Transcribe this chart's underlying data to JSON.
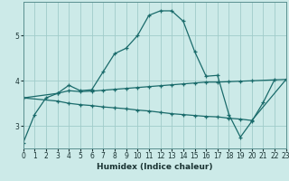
{
  "xlabel": "Humidex (Indice chaleur)",
  "bg_color": "#cceae8",
  "grid_color": "#a0ccca",
  "line_color": "#1a6b6b",
  "xlim": [
    0,
    23
  ],
  "ylim": [
    2.5,
    5.75
  ],
  "yticks": [
    3,
    4,
    5
  ],
  "xticks": [
    0,
    1,
    2,
    3,
    4,
    5,
    6,
    7,
    8,
    9,
    10,
    11,
    12,
    13,
    14,
    15,
    16,
    17,
    18,
    19,
    20,
    21,
    22,
    23
  ],
  "curve1_x": [
    0,
    1,
    2,
    3,
    4,
    5,
    6,
    7,
    8,
    9,
    10,
    11,
    12,
    13,
    14,
    15,
    16,
    17,
    18,
    19,
    20,
    21,
    22
  ],
  "curve1_y": [
    2.62,
    3.25,
    3.62,
    3.72,
    3.9,
    3.78,
    3.8,
    4.2,
    4.6,
    4.72,
    5.0,
    5.45,
    5.55,
    5.55,
    5.32,
    4.65,
    4.1,
    4.12,
    3.25,
    2.75,
    3.1,
    3.52,
    4.03
  ],
  "curve2_x": [
    0,
    3,
    4,
    5,
    6,
    7,
    8,
    9,
    10,
    11,
    12,
    13,
    14,
    15,
    16,
    17,
    18,
    19,
    20,
    23
  ],
  "curve2_y": [
    3.62,
    3.72,
    3.78,
    3.76,
    3.77,
    3.79,
    3.81,
    3.83,
    3.85,
    3.87,
    3.89,
    3.91,
    3.93,
    3.95,
    3.97,
    3.97,
    3.98,
    3.99,
    4.0,
    4.03
  ],
  "curve3_x": [
    0,
    3,
    4,
    5,
    6,
    7,
    8,
    9,
    10,
    11,
    12,
    13,
    14,
    15,
    16,
    17,
    18,
    19,
    20,
    23
  ],
  "curve3_y": [
    3.62,
    3.55,
    3.5,
    3.47,
    3.45,
    3.42,
    3.4,
    3.38,
    3.35,
    3.33,
    3.3,
    3.27,
    3.25,
    3.23,
    3.21,
    3.2,
    3.17,
    3.15,
    3.12,
    4.03
  ]
}
